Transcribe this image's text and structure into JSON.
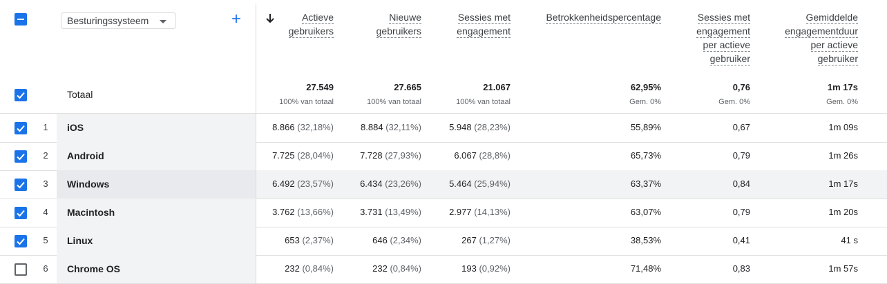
{
  "header": {
    "dimension_label": "Besturingssysteem",
    "columns": [
      {
        "id": "active_users",
        "lines": [
          "Actieve",
          "gebruikers"
        ]
      },
      {
        "id": "new_users",
        "lines": [
          "Nieuwe",
          "gebruikers"
        ]
      },
      {
        "id": "engaged_sessions",
        "lines": [
          "Sessies met",
          "engagement"
        ]
      },
      {
        "id": "engagement_rate",
        "lines": [
          "Betrokkenheidspercentage"
        ]
      },
      {
        "id": "engaged_sessions_per_user",
        "lines": [
          "Sessies met",
          "engagement",
          "per actieve",
          "gebruiker"
        ]
      },
      {
        "id": "avg_engagement_time",
        "lines": [
          "Gemiddelde",
          "engagementduur",
          "per actieve",
          "gebruiker"
        ]
      }
    ]
  },
  "totals": {
    "label": "Totaal",
    "values": [
      "27.549",
      "27.665",
      "21.067",
      "62,95%",
      "0,76",
      "1m 17s"
    ],
    "subs": [
      "100% van totaal",
      "100% van totaal",
      "100% van totaal",
      "Gem. 0%",
      "Gem. 0%",
      "Gem. 0%"
    ]
  },
  "rows": [
    {
      "num": "1",
      "name": "iOS",
      "checked": true,
      "cells": [
        [
          "8.866",
          " (32,18%)"
        ],
        [
          "8.884",
          " (32,11%)"
        ],
        [
          "5.948",
          " (28,23%)"
        ],
        [
          "55,89%",
          ""
        ],
        [
          "0,67",
          ""
        ],
        [
          "1m 09s",
          ""
        ]
      ]
    },
    {
      "num": "2",
      "name": "Android",
      "checked": true,
      "cells": [
        [
          "7.725",
          " (28,04%)"
        ],
        [
          "7.728",
          " (27,93%)"
        ],
        [
          "6.067",
          " (28,8%)"
        ],
        [
          "65,73%",
          ""
        ],
        [
          "0,79",
          ""
        ],
        [
          "1m 26s",
          ""
        ]
      ]
    },
    {
      "num": "3",
      "name": "Windows",
      "checked": true,
      "cells": [
        [
          "6.492",
          " (23,57%)"
        ],
        [
          "6.434",
          " (23,26%)"
        ],
        [
          "5.464",
          " (25,94%)"
        ],
        [
          "63,37%",
          ""
        ],
        [
          "0,84",
          ""
        ],
        [
          "1m 17s",
          ""
        ]
      ]
    },
    {
      "num": "4",
      "name": "Macintosh",
      "checked": true,
      "cells": [
        [
          "3.762",
          " (13,66%)"
        ],
        [
          "3.731",
          " (13,49%)"
        ],
        [
          "2.977",
          " (14,13%)"
        ],
        [
          "63,07%",
          ""
        ],
        [
          "0,79",
          ""
        ],
        [
          "1m 20s",
          ""
        ]
      ]
    },
    {
      "num": "5",
      "name": "Linux",
      "checked": true,
      "cells": [
        [
          "653",
          " (2,37%)"
        ],
        [
          "646",
          " (2,34%)"
        ],
        [
          "267",
          " (1,27%)"
        ],
        [
          "38,53%",
          ""
        ],
        [
          "0,41",
          ""
        ],
        [
          "41 s",
          ""
        ]
      ]
    },
    {
      "num": "6",
      "name": "Chrome OS",
      "checked": false,
      "cells": [
        [
          "232",
          " (0,84%)"
        ],
        [
          "232",
          " (0,84%)"
        ],
        [
          "193",
          " (0,92%)"
        ],
        [
          "71,48%",
          ""
        ],
        [
          "0,83",
          ""
        ],
        [
          "1m 57s",
          ""
        ]
      ]
    }
  ],
  "icons": {
    "select_all": "minus-checkbox-icon",
    "add_dimension": "plus-icon",
    "sort": "arrow-down-icon",
    "checkbox": "checkbox-icon"
  },
  "colors": {
    "accent": "#1a73e8",
    "row_highlight": "#f1f3f4"
  }
}
